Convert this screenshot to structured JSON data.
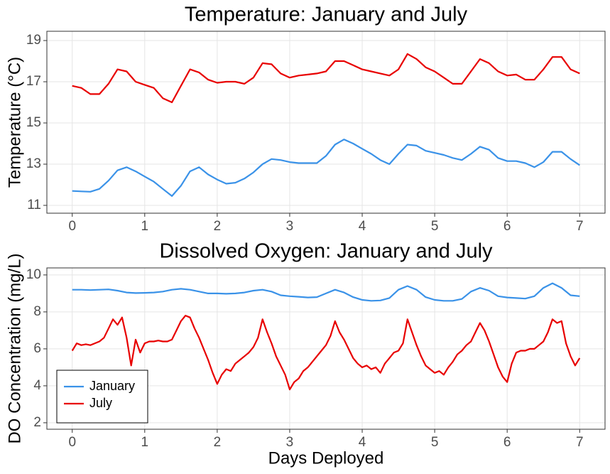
{
  "chart_data": [
    {
      "type": "line",
      "title": "Temperature: January and July",
      "ylabel": "Temperature (°C)",
      "xlim": [
        -0.35,
        7.35
      ],
      "xticks": [
        0,
        1,
        2,
        3,
        4,
        5,
        6,
        7
      ],
      "ylim": [
        10.62,
        19.45
      ],
      "yticks": [
        11,
        13,
        15,
        17,
        19
      ],
      "grid": true,
      "series": [
        {
          "name": "January",
          "color": "#3a92e8",
          "x": [
            0,
            0.125,
            0.25,
            0.375,
            0.5,
            0.625,
            0.75,
            0.875,
            1,
            1.125,
            1.25,
            1.375,
            1.5,
            1.625,
            1.75,
            1.875,
            2,
            2.125,
            2.25,
            2.375,
            2.5,
            2.625,
            2.75,
            2.875,
            3,
            3.125,
            3.25,
            3.375,
            3.5,
            3.625,
            3.75,
            3.875,
            4,
            4.125,
            4.25,
            4.375,
            4.5,
            4.625,
            4.75,
            4.875,
            5,
            5.125,
            5.25,
            5.375,
            5.5,
            5.625,
            5.75,
            5.875,
            6,
            6.125,
            6.25,
            6.375,
            6.5,
            6.625,
            6.75,
            6.875,
            7
          ],
          "values": [
            11.7,
            11.68,
            11.66,
            11.8,
            12.2,
            12.7,
            12.85,
            12.65,
            12.4,
            12.15,
            11.8,
            11.45,
            11.95,
            12.65,
            12.85,
            12.5,
            12.25,
            12.05,
            12.1,
            12.3,
            12.6,
            13.0,
            13.25,
            13.2,
            13.1,
            13.05,
            13.05,
            13.05,
            13.4,
            13.95,
            14.2,
            14.0,
            13.75,
            13.5,
            13.2,
            13.0,
            13.5,
            13.95,
            13.9,
            13.65,
            13.55,
            13.45,
            13.3,
            13.2,
            13.5,
            13.85,
            13.7,
            13.3,
            13.15,
            13.15,
            13.05,
            12.85,
            13.1,
            13.6,
            13.6,
            13.25,
            12.95
          ]
        },
        {
          "name": "July",
          "color": "#e80000",
          "x": [
            0,
            0.125,
            0.25,
            0.375,
            0.5,
            0.625,
            0.75,
            0.875,
            1,
            1.125,
            1.25,
            1.375,
            1.5,
            1.625,
            1.75,
            1.875,
            2,
            2.125,
            2.25,
            2.375,
            2.5,
            2.625,
            2.75,
            2.875,
            3,
            3.125,
            3.25,
            3.375,
            3.5,
            3.625,
            3.75,
            3.875,
            4,
            4.125,
            4.25,
            4.375,
            4.5,
            4.625,
            4.75,
            4.875,
            5,
            5.125,
            5.25,
            5.375,
            5.5,
            5.625,
            5.75,
            5.875,
            6,
            6.125,
            6.25,
            6.375,
            6.5,
            6.625,
            6.75,
            6.875,
            7
          ],
          "values": [
            16.8,
            16.7,
            16.4,
            16.4,
            16.9,
            17.6,
            17.5,
            17.0,
            16.85,
            16.7,
            16.2,
            16.0,
            16.8,
            17.6,
            17.45,
            17.1,
            16.95,
            17.0,
            17.0,
            16.9,
            17.2,
            17.9,
            17.85,
            17.4,
            17.2,
            17.3,
            17.35,
            17.4,
            17.5,
            18.0,
            18.0,
            17.8,
            17.6,
            17.5,
            17.4,
            17.3,
            17.6,
            18.35,
            18.1,
            17.7,
            17.5,
            17.2,
            16.9,
            16.9,
            17.5,
            18.1,
            17.9,
            17.5,
            17.3,
            17.35,
            17.1,
            17.1,
            17.6,
            18.2,
            18.2,
            17.6,
            17.4
          ]
        }
      ]
    },
    {
      "type": "line",
      "title": "Dissolved Oxygen: January and July",
      "ylabel": "DO Concentration (mg/L)",
      "xlabel": "Days Deployed",
      "xlim": [
        -0.35,
        7.35
      ],
      "xticks": [
        0,
        1,
        2,
        3,
        4,
        5,
        6,
        7
      ],
      "ylim": [
        1.65,
        10.38
      ],
      "yticks": [
        2,
        4,
        6,
        8,
        10
      ],
      "grid": true,
      "legend": "bottom-left",
      "series": [
        {
          "name": "January",
          "color": "#3a92e8",
          "x": [
            0,
            0.125,
            0.25,
            0.375,
            0.5,
            0.625,
            0.75,
            0.875,
            1,
            1.125,
            1.25,
            1.375,
            1.5,
            1.625,
            1.75,
            1.875,
            2,
            2.125,
            2.25,
            2.375,
            2.5,
            2.625,
            2.75,
            2.875,
            3,
            3.125,
            3.25,
            3.375,
            3.5,
            3.625,
            3.75,
            3.875,
            4,
            4.125,
            4.25,
            4.375,
            4.5,
            4.625,
            4.75,
            4.875,
            5,
            5.125,
            5.25,
            5.375,
            5.5,
            5.625,
            5.75,
            5.875,
            6,
            6.125,
            6.25,
            6.375,
            6.5,
            6.625,
            6.75,
            6.875,
            7
          ],
          "values": [
            9.2,
            9.2,
            9.18,
            9.2,
            9.22,
            9.15,
            9.05,
            9.02,
            9.03,
            9.05,
            9.1,
            9.2,
            9.25,
            9.2,
            9.1,
            9.0,
            9.0,
            8.98,
            9.0,
            9.05,
            9.15,
            9.2,
            9.1,
            8.9,
            8.85,
            8.82,
            8.78,
            8.8,
            9.0,
            9.2,
            9.05,
            8.8,
            8.65,
            8.6,
            8.62,
            8.75,
            9.2,
            9.4,
            9.2,
            8.8,
            8.65,
            8.6,
            8.6,
            8.7,
            9.1,
            9.3,
            9.15,
            8.85,
            8.78,
            8.75,
            8.72,
            8.85,
            9.3,
            9.55,
            9.3,
            8.9,
            8.85
          ]
        },
        {
          "name": "July",
          "color": "#e80000",
          "x": [
            0,
            0.0625,
            0.125,
            0.1875,
            0.25,
            0.3125,
            0.375,
            0.4375,
            0.5,
            0.5625,
            0.625,
            0.6875,
            0.75,
            0.8125,
            0.875,
            0.9375,
            1,
            1.0625,
            1.125,
            1.1875,
            1.25,
            1.3125,
            1.375,
            1.4375,
            1.5,
            1.5625,
            1.625,
            1.6875,
            1.75,
            1.8125,
            1.875,
            1.9375,
            2,
            2.0625,
            2.125,
            2.1875,
            2.25,
            2.3125,
            2.375,
            2.4375,
            2.5,
            2.5625,
            2.625,
            2.6875,
            2.75,
            2.8125,
            2.875,
            2.9375,
            3,
            3.0625,
            3.125,
            3.1875,
            3.25,
            3.3125,
            3.375,
            3.4375,
            3.5,
            3.5625,
            3.625,
            3.6875,
            3.75,
            3.8125,
            3.875,
            3.9375,
            4,
            4.0625,
            4.125,
            4.1875,
            4.25,
            4.3125,
            4.375,
            4.4375,
            4.5,
            4.5625,
            4.625,
            4.6875,
            4.75,
            4.8125,
            4.875,
            4.9375,
            5,
            5.0625,
            5.125,
            5.1875,
            5.25,
            5.3125,
            5.375,
            5.4375,
            5.5,
            5.5625,
            5.625,
            5.6875,
            5.75,
            5.8125,
            5.875,
            5.9375,
            6,
            6.0625,
            6.125,
            6.1875,
            6.25,
            6.3125,
            6.375,
            6.4375,
            6.5,
            6.5625,
            6.625,
            6.6875,
            6.75,
            6.8125,
            6.875,
            6.9375,
            7
          ],
          "values": [
            5.9,
            6.3,
            6.2,
            6.25,
            6.2,
            6.3,
            6.4,
            6.6,
            7.1,
            7.6,
            7.3,
            7.7,
            6.6,
            5.1,
            6.5,
            5.8,
            6.3,
            6.4,
            6.4,
            6.45,
            6.4,
            6.4,
            6.5,
            7.0,
            7.5,
            7.8,
            7.7,
            7.1,
            6.6,
            6.0,
            5.4,
            4.7,
            4.1,
            4.6,
            4.9,
            4.8,
            5.2,
            5.4,
            5.6,
            5.8,
            6.1,
            6.6,
            7.6,
            6.9,
            6.3,
            5.6,
            5.1,
            4.6,
            3.8,
            4.2,
            4.4,
            4.8,
            5.0,
            5.3,
            5.6,
            5.9,
            6.2,
            6.7,
            7.5,
            6.9,
            6.5,
            6.0,
            5.5,
            5.2,
            5.0,
            5.1,
            4.9,
            5.0,
            4.7,
            5.2,
            5.5,
            5.8,
            5.9,
            6.3,
            7.6,
            6.9,
            6.2,
            5.6,
            5.1,
            4.9,
            4.7,
            4.8,
            4.6,
            5.0,
            5.3,
            5.7,
            5.9,
            6.2,
            6.4,
            6.9,
            7.4,
            7.0,
            6.4,
            5.7,
            5.0,
            4.5,
            4.2,
            5.2,
            5.8,
            5.9,
            5.9,
            6.0,
            6.0,
            6.2,
            6.4,
            6.9,
            7.6,
            7.4,
            7.5,
            6.3,
            5.6,
            5.1,
            5.5
          ]
        }
      ]
    }
  ]
}
